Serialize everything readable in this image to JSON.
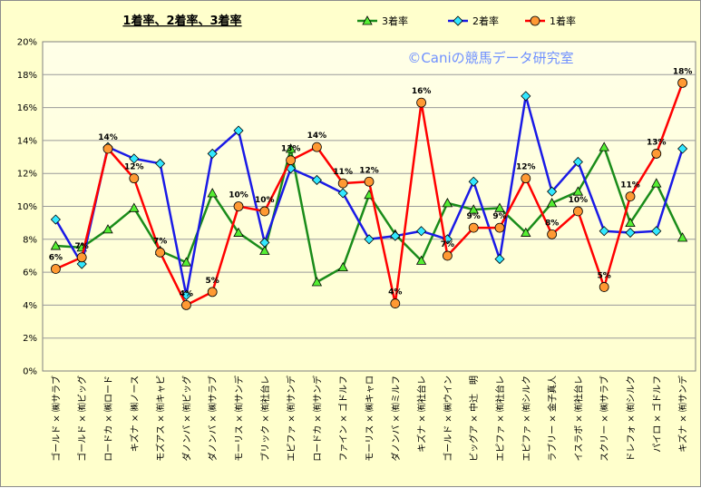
{
  "chart_data": {
    "type": "line",
    "title": "1着率、2着率、3着率",
    "watermark": "©Caniの競馬データ研究室",
    "ylim": [
      0,
      20
    ],
    "ytick_labels": [
      "0%",
      "2%",
      "4%",
      "6%",
      "8%",
      "10%",
      "12%",
      "14%",
      "16%",
      "18%",
      "20%"
    ],
    "legend_position": "top-center",
    "grid": true,
    "categories": [
      "ゴールド × ㈱サラブ",
      "ゴールド × ㈲ビッグ",
      "ロードカ × ㈱ロード",
      "キズナ × ㈱ノース",
      "モズアス × ㈲キャピ",
      "ダノンバ × ㈲ビッグ",
      "ダノンバ × ㈱サラブ",
      "モーリス × ㈲サンデ",
      "ブリック × ㈲社台レ",
      "エピファ × ㈲サンデ",
      "ロードカ × ㈲サンデ",
      "ファイン × ゴドルフ",
      "モーリス × ㈱キャロ",
      "ダノンバ × ㈲ミルフ",
      "キズナ × ㈲社台レ",
      "ゴールド × ㈱ウイン",
      "ビッグア × 中辻　明",
      "エピファ × ㈲社台レ",
      "エピファ × ㈲シルク",
      "ラブリー × 金子真人",
      "イスラボ × ㈲社台レ",
      "スクリー × ㈱サラブ",
      "ドレフォ × ㈲シルク",
      "パイロ × ゴドルフ",
      "キズナ × ㈲サンデ"
    ],
    "series": [
      {
        "name": "3着率",
        "color": "#1a8c1a",
        "marker": "triangle",
        "values": [
          7.6,
          7.5,
          8.6,
          9.9,
          7.3,
          6.6,
          10.8,
          8.4,
          7.3,
          13.5,
          5.4,
          6.3,
          10.7,
          8.3,
          6.7,
          10.2,
          9.8,
          9.9,
          8.4,
          10.2,
          10.9,
          13.6,
          9.0,
          11.4,
          8.1
        ]
      },
      {
        "name": "2着率",
        "color": "#1a1ae6",
        "marker": "diamond",
        "values": [
          9.2,
          6.5,
          13.6,
          12.9,
          12.6,
          4.6,
          13.2,
          14.6,
          7.8,
          12.3,
          11.6,
          10.8,
          8.0,
          8.2,
          8.5,
          8.0,
          11.5,
          6.8,
          16.7,
          10.9,
          12.7,
          8.5,
          8.4,
          8.5,
          13.5
        ]
      },
      {
        "name": "1着率",
        "color": "#ff0000",
        "marker": "circle",
        "values": [
          6.2,
          6.9,
          13.5,
          11.7,
          7.2,
          4.0,
          4.8,
          10.0,
          9.7,
          12.8,
          13.6,
          11.4,
          11.5,
          4.1,
          16.3,
          7.0,
          8.7,
          8.7,
          11.7,
          8.3,
          9.7,
          5.1,
          10.6,
          13.2,
          17.5
        ],
        "data_labels": [
          "6%",
          "7%",
          "14%",
          "12%",
          "7%",
          "4%",
          "5%",
          "10%",
          "10%",
          "13%",
          "14%",
          "11%",
          "12%",
          "4%",
          "16%",
          "7%",
          "9%",
          "9%",
          "12%",
          "8%",
          "10%",
          "5%",
          "11%",
          "13%",
          "18%"
        ]
      }
    ]
  }
}
